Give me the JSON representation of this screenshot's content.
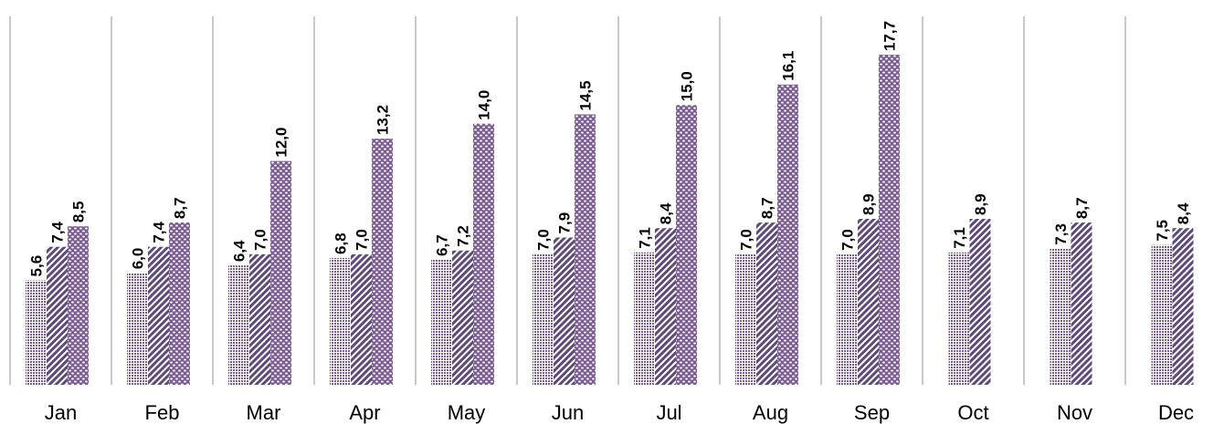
{
  "chart_data": {
    "type": "bar",
    "categories": [
      "Jan",
      "Feb",
      "Mar",
      "Apr",
      "May",
      "Jun",
      "Jul",
      "Aug",
      "Sep",
      "Oct",
      "Nov",
      "Dec"
    ],
    "series": [
      {
        "values": [
          5.6,
          6.0,
          6.4,
          6.8,
          6.7,
          7.0,
          7.1,
          7.0,
          7.0,
          7.1,
          7.3,
          7.5
        ],
        "labels": [
          "5,6",
          "6,0",
          "6,4",
          "6,8",
          "6,7",
          "7,0",
          "7,1",
          "7,0",
          "7,0",
          "7,1",
          "7,3",
          "7,5"
        ],
        "pattern": "dots-fine",
        "color": "#7B5C93"
      },
      {
        "values": [
          7.4,
          7.4,
          7.0,
          7.0,
          7.2,
          7.9,
          8.4,
          8.7,
          8.9,
          8.9,
          8.7,
          8.4
        ],
        "labels": [
          "7,4",
          "7,4",
          "7,0",
          "7,0",
          "7,2",
          "7,9",
          "8,4",
          "8,7",
          "8,9",
          "8,9",
          "8,7",
          "8,4"
        ],
        "pattern": "diagonal-stripes",
        "color": "#5E4A78"
      },
      {
        "values": [
          8.5,
          8.7,
          12.0,
          13.2,
          14.0,
          14.5,
          15.0,
          16.1,
          17.7,
          null,
          null,
          null
        ],
        "labels": [
          "8,5",
          "8,7",
          "12,0",
          "13,2",
          "14,0",
          "14,5",
          "15,0",
          "16,1",
          "17,7",
          null,
          null,
          null
        ],
        "pattern": "dots-large",
        "color": "#7B5C93"
      }
    ],
    "ylim": [
      0,
      20
    ],
    "grid": "vertical-separators",
    "legend": "none",
    "colors": {
      "grid": "#c8c8c8",
      "bar": "#7B5C93",
      "bar_dark": "#5E4A78"
    }
  }
}
